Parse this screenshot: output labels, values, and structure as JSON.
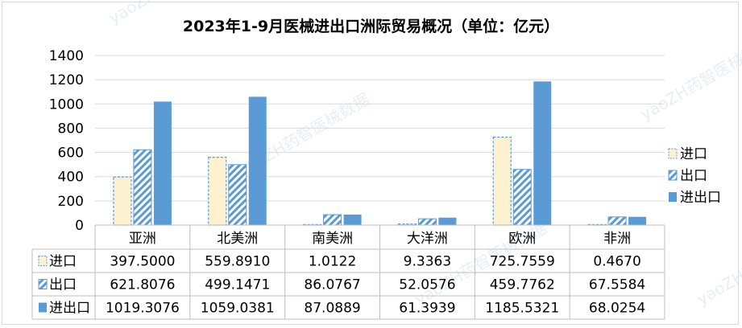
{
  "chart_data": {
    "type": "bar",
    "title": "2023年1-9月医械进出口洲际贸易概况（单位：亿元）",
    "categories": [
      "亚洲",
      "北美洲",
      "南美洲",
      "大洋洲",
      "欧洲",
      "非洲"
    ],
    "series": [
      {
        "name": "进口",
        "values": [
          397.5,
          559.891,
          1.0122,
          9.3363,
          725.7559,
          0.467
        ],
        "labels": [
          "397.5000",
          "559.8910",
          "1.0122",
          "9.3363",
          "725.7559",
          "0.4670"
        ],
        "fill": "#fdf1cf",
        "stroke": "#5b9bd5",
        "style": "dashed"
      },
      {
        "name": "出口",
        "values": [
          621.8076,
          499.1471,
          86.0767,
          52.0576,
          459.7762,
          67.5584
        ],
        "labels": [
          "621.8076",
          "499.1471",
          "86.0767",
          "52.0576",
          "459.7762",
          "67.5584"
        ],
        "fill": "#5b9bd5",
        "stroke": "#5b9bd5",
        "style": "hatched"
      },
      {
        "name": "进出口",
        "values": [
          1019.3076,
          1059.0381,
          87.0889,
          61.3939,
          1185.5321,
          68.0254
        ],
        "labels": [
          "1019.3076",
          "1059.0381",
          "87.0889",
          "61.3939",
          "1185.5321",
          "68.0254"
        ],
        "fill": "#5b9bd5",
        "stroke": "#5b9bd5",
        "style": "solid"
      }
    ],
    "ylim": [
      0,
      1400
    ],
    "yticks": [
      0,
      200,
      400,
      600,
      800,
      1000,
      1200,
      1400
    ],
    "grid": true,
    "legend": "right",
    "data_table": true,
    "watermark": "yaoZH药智医械数据"
  }
}
